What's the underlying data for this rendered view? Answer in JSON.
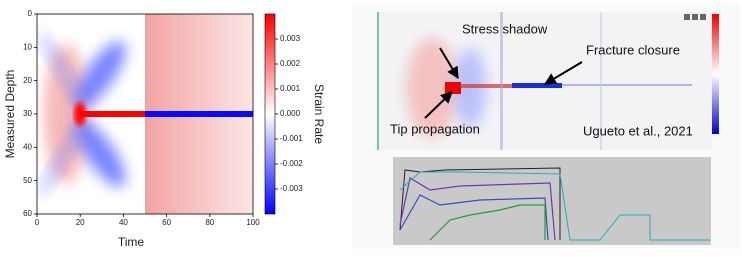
{
  "chart_data": {
    "type": "heatmap",
    "xlabel": "Time",
    "ylabel": "Measured Depth",
    "xlim": [
      0,
      100
    ],
    "xticks": [
      0,
      20,
      40,
      60,
      80,
      100
    ],
    "ylim": [
      60,
      0
    ],
    "yticks": [
      0,
      10,
      20,
      30,
      40,
      50,
      60
    ],
    "colorbar": {
      "label": "Strain Rate",
      "lim": [
        -0.004,
        0.004
      ],
      "ticks": [
        0.003,
        0.002,
        0.001,
        {
          "value": 0,
          "label": "0.000"
        },
        -0.001,
        -0.002,
        -0.003
      ],
      "colors": [
        "#0000ff",
        "#ffffff",
        "#ff0000"
      ]
    }
  },
  "figure": {
    "annotations": [
      "Stress shadow",
      "Fracture closure",
      "Tip propagation"
    ],
    "citation": "Ugueto et al., 2021"
  }
}
